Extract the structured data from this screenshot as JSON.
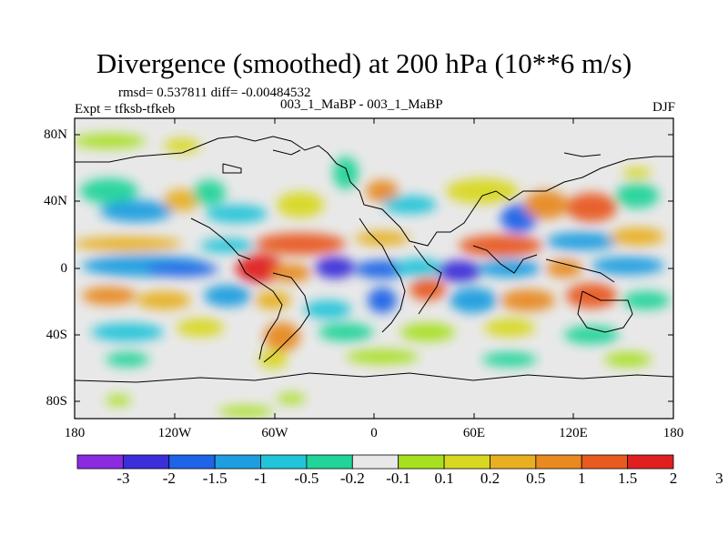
{
  "title": "Divergence (smoothed) at 200 hPa (10**6 m/s)",
  "stats_line": "rmsd= 0.537811  diff= -0.00484532",
  "experiment_line": "Expt = tfksb-tfkeb",
  "comparison_label": "003_1_MaBP - 003_1_MaBP",
  "season": "DJF",
  "y_ticks": [
    "80N",
    "40N",
    "0",
    "40S",
    "80S"
  ],
  "x_ticks": [
    "180",
    "120W",
    "60W",
    "0",
    "60E",
    "120E",
    "180"
  ],
  "colorbar": {
    "labels": [
      "-3",
      "-2",
      "-1.5",
      "-1",
      "-0.5",
      "-0.2",
      "-0.1",
      "0.1",
      "0.2",
      "0.5",
      "1",
      "1.5",
      "2",
      "3"
    ],
    "colors": [
      "#8a2be2",
      "#3a2fd8",
      "#1f63e8",
      "#1e9ee0",
      "#22c4d9",
      "#20d49a",
      "#e8e8e8",
      "#a8e020",
      "#d8d820",
      "#e8b020",
      "#e88a20",
      "#e85a20",
      "#e02020"
    ]
  },
  "map": {
    "lon_range": [
      -180,
      180
    ],
    "lat_range": [
      -90,
      90
    ],
    "background_color": "#e8e8e8",
    "border_color": "#000000"
  }
}
